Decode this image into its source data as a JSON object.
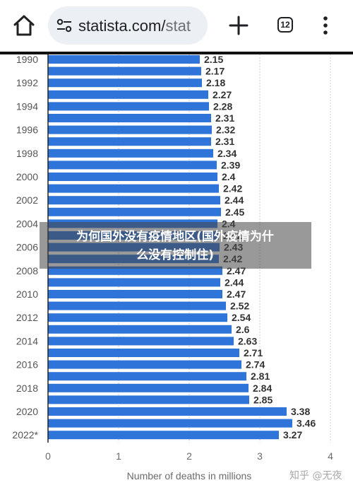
{
  "browser": {
    "url_main": "statista.com/",
    "url_tail": "stat",
    "tab_count": "12",
    "icons": {
      "home": "home-icon",
      "site_settings": "tune-icon",
      "new_tab": "plus-icon",
      "tabs": "tab-switcher-icon",
      "menu": "more-vert-icon"
    }
  },
  "overlay": {
    "line1": "为何国外没有疫情地区(国外疫情为什",
    "line2": "么没有控制住)"
  },
  "watermark": "知乎 @无夜",
  "colors": {
    "bar": "#2f74d9",
    "divider": "#111111",
    "overlay": "#464646"
  },
  "chart_data": {
    "type": "bar",
    "orientation": "horizontal",
    "xlabel": "Number of deaths in millions",
    "xlim": [
      0,
      4
    ],
    "xticks": [
      "0",
      "1",
      "2",
      "3",
      "4"
    ],
    "grid": true,
    "rows": [
      {
        "year": "1990",
        "value": "2.15",
        "v": 2.15
      },
      {
        "year": "",
        "value": "2.17",
        "v": 2.17
      },
      {
        "year": "1992",
        "value": "2.18",
        "v": 2.18
      },
      {
        "year": "",
        "value": "2.27",
        "v": 2.27
      },
      {
        "year": "1994",
        "value": "2.28",
        "v": 2.28
      },
      {
        "year": "",
        "value": "2.31",
        "v": 2.31
      },
      {
        "year": "1996",
        "value": "2.32",
        "v": 2.32
      },
      {
        "year": "",
        "value": "2.31",
        "v": 2.31
      },
      {
        "year": "1998",
        "value": "2.34",
        "v": 2.34
      },
      {
        "year": "",
        "value": "2.39",
        "v": 2.39
      },
      {
        "year": "2000",
        "value": "2.4",
        "v": 2.4
      },
      {
        "year": "",
        "value": "2.42",
        "v": 2.42
      },
      {
        "year": "2002",
        "value": "2.44",
        "v": 2.44
      },
      {
        "year": "",
        "value": "2.45",
        "v": 2.45
      },
      {
        "year": "2004",
        "value": "2.4",
        "v": 2.4
      },
      {
        "year": "",
        "value": "2.42",
        "v": 2.42
      },
      {
        "year": "2006",
        "value": "2.43",
        "v": 2.43
      },
      {
        "year": "",
        "value": "2.42",
        "v": 2.42
      },
      {
        "year": "2008",
        "value": "2.47",
        "v": 2.47
      },
      {
        "year": "",
        "value": "2.44",
        "v": 2.44
      },
      {
        "year": "2010",
        "value": "2.47",
        "v": 2.47
      },
      {
        "year": "",
        "value": "2.52",
        "v": 2.52
      },
      {
        "year": "2012",
        "value": "2.54",
        "v": 2.54
      },
      {
        "year": "",
        "value": "2.6",
        "v": 2.6
      },
      {
        "year": "2014",
        "value": "2.63",
        "v": 2.63
      },
      {
        "year": "",
        "value": "2.71",
        "v": 2.71
      },
      {
        "year": "2016",
        "value": "2.74",
        "v": 2.74
      },
      {
        "year": "",
        "value": "2.81",
        "v": 2.81
      },
      {
        "year": "2018",
        "value": "2.84",
        "v": 2.84
      },
      {
        "year": "",
        "value": "2.85",
        "v": 2.85
      },
      {
        "year": "2020",
        "value": "3.38",
        "v": 3.38
      },
      {
        "year": "",
        "value": "3.46",
        "v": 3.46
      },
      {
        "year": "2022*",
        "value": "3.27",
        "v": 3.27
      }
    ]
  }
}
